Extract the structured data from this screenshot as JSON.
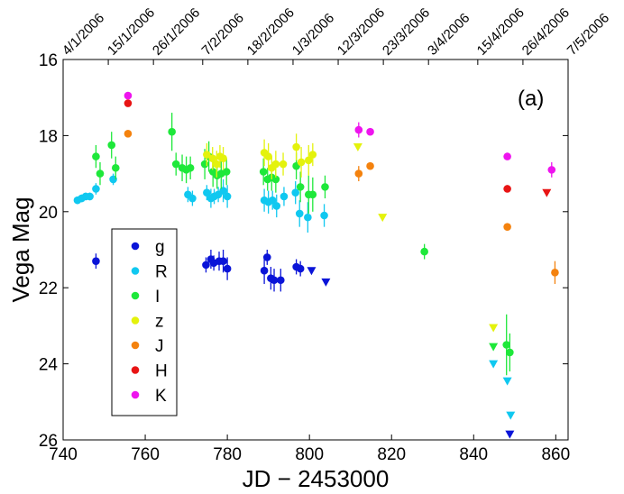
{
  "chart_data": {
    "type": "scatter",
    "panel_label": "(a)",
    "xlabel": "JD − 2453000",
    "ylabel": "Vega Mag",
    "xlim": [
      740,
      863
    ],
    "ylim": [
      16,
      26
    ],
    "y_inverted": true,
    "x_ticks": [
      740,
      760,
      780,
      800,
      820,
      840,
      860
    ],
    "y_ticks": [
      16,
      18,
      20,
      22,
      24,
      26
    ],
    "top_date_ticks": [
      {
        "label": "4/1/2006",
        "jd": 740
      },
      {
        "label": "15/1/2006",
        "jd": 751
      },
      {
        "label": "26/1/2006",
        "jd": 762
      },
      {
        "label": "7/2/2006",
        "jd": 774
      },
      {
        "label": "18/2/2006",
        "jd": 785
      },
      {
        "label": "1/3/2006",
        "jd": 796
      },
      {
        "label": "12/3/2006",
        "jd": 807
      },
      {
        "label": "23/3/2006",
        "jd": 818
      },
      {
        "label": "3/4/2006",
        "jd": 829
      },
      {
        "label": "15/4/2006",
        "jd": 841
      },
      {
        "label": "26/4/2006",
        "jd": 852
      },
      {
        "label": "7/5/2006",
        "jd": 863
      }
    ],
    "legend_position": "left-middle",
    "series": [
      {
        "name": "g",
        "color": "#0a14d8",
        "points": [
          {
            "x": 748,
            "y": 21.3,
            "err": 0.2
          },
          {
            "x": 774.8,
            "y": 21.4,
            "err": 0.2
          },
          {
            "x": 776,
            "y": 21.25,
            "err": 0.25
          },
          {
            "x": 776.7,
            "y": 21.35,
            "err": 0.2
          },
          {
            "x": 778,
            "y": 21.3,
            "err": 0.25
          },
          {
            "x": 779,
            "y": 21.3,
            "err": 0.3
          },
          {
            "x": 780,
            "y": 21.5,
            "err": 0.3
          },
          {
            "x": 789,
            "y": 21.55,
            "err": 0.35
          },
          {
            "x": 789.7,
            "y": 21.2,
            "err": 0.2
          },
          {
            "x": 790.6,
            "y": 21.75,
            "err": 0.3
          },
          {
            "x": 791.4,
            "y": 21.8,
            "err": 0.3
          },
          {
            "x": 793,
            "y": 21.8,
            "err": 0.3
          },
          {
            "x": 796.8,
            "y": 21.45,
            "err": 0.2
          },
          {
            "x": 797.8,
            "y": 21.5,
            "err": 0.2
          }
        ],
        "upper_limits": [
          {
            "x": 800.5,
            "y": 21.55
          },
          {
            "x": 804,
            "y": 21.85
          },
          {
            "x": 848.8,
            "y": 25.85
          }
        ]
      },
      {
        "name": "R",
        "color": "#10c8f0",
        "points": [
          {
            "x": 743.5,
            "y": 19.7,
            "err": 0.1
          },
          {
            "x": 744.5,
            "y": 19.65,
            "err": 0.1
          },
          {
            "x": 745.5,
            "y": 19.6,
            "err": 0.1
          },
          {
            "x": 746.5,
            "y": 19.6,
            "err": 0.1
          },
          {
            "x": 748,
            "y": 19.4,
            "err": 0.15
          },
          {
            "x": 752.2,
            "y": 19.15,
            "err": 0.15
          },
          {
            "x": 770.4,
            "y": 19.55,
            "err": 0.2
          },
          {
            "x": 771.5,
            "y": 19.65,
            "err": 0.2
          },
          {
            "x": 775,
            "y": 19.5,
            "err": 0.2
          },
          {
            "x": 776,
            "y": 19.65,
            "err": 0.25
          },
          {
            "x": 776.8,
            "y": 19.6,
            "err": 0.2
          },
          {
            "x": 777.8,
            "y": 19.55,
            "err": 0.2
          },
          {
            "x": 779,
            "y": 19.45,
            "err": 0.3
          },
          {
            "x": 780,
            "y": 19.6,
            "err": 0.3
          },
          {
            "x": 789,
            "y": 19.7,
            "err": 0.3
          },
          {
            "x": 790,
            "y": 19.75,
            "err": 0.3
          },
          {
            "x": 791,
            "y": 19.7,
            "err": 0.25
          },
          {
            "x": 792,
            "y": 19.85,
            "err": 0.3
          },
          {
            "x": 793.8,
            "y": 19.6,
            "err": 0.25
          },
          {
            "x": 796.6,
            "y": 19.5,
            "err": 0.3
          },
          {
            "x": 797.6,
            "y": 20.05,
            "err": 0.35
          },
          {
            "x": 799.6,
            "y": 20.15,
            "err": 0.4
          },
          {
            "x": 803.6,
            "y": 20.1,
            "err": 0.3
          }
        ],
        "upper_limits": [
          {
            "x": 844.8,
            "y": 24.0
          },
          {
            "x": 848.2,
            "y": 24.45
          },
          {
            "x": 849,
            "y": 25.35
          }
        ]
      },
      {
        "name": "I",
        "color": "#1ee83a",
        "points": [
          {
            "x": 748,
            "y": 18.55,
            "err": 0.3
          },
          {
            "x": 749,
            "y": 19.0,
            "err": 0.3
          },
          {
            "x": 751.8,
            "y": 18.25,
            "err": 0.35
          },
          {
            "x": 752.8,
            "y": 18.85,
            "err": 0.3
          },
          {
            "x": 766.5,
            "y": 17.9,
            "err": 0.5
          },
          {
            "x": 767.5,
            "y": 18.75,
            "err": 0.3
          },
          {
            "x": 769,
            "y": 18.85,
            "err": 0.35
          },
          {
            "x": 770,
            "y": 18.9,
            "err": 0.35
          },
          {
            "x": 771,
            "y": 18.85,
            "err": 0.3
          },
          {
            "x": 774.5,
            "y": 18.75,
            "err": 0.4
          },
          {
            "x": 775.5,
            "y": 18.55,
            "err": 0.4
          },
          {
            "x": 776.5,
            "y": 18.95,
            "err": 0.4
          },
          {
            "x": 777.5,
            "y": 19.05,
            "err": 0.35
          },
          {
            "x": 778.5,
            "y": 19.0,
            "err": 0.4
          },
          {
            "x": 779.8,
            "y": 18.95,
            "err": 0.35
          },
          {
            "x": 788.8,
            "y": 18.95,
            "err": 0.35
          },
          {
            "x": 789.8,
            "y": 19.15,
            "err": 0.3
          },
          {
            "x": 790.8,
            "y": 19.1,
            "err": 0.35
          },
          {
            "x": 791.8,
            "y": 19.15,
            "err": 0.35
          },
          {
            "x": 796.8,
            "y": 18.8,
            "err": 0.35
          },
          {
            "x": 797.8,
            "y": 19.35,
            "err": 0.4
          },
          {
            "x": 799.8,
            "y": 19.55,
            "err": 0.5
          },
          {
            "x": 800.8,
            "y": 19.55,
            "err": 0.45
          },
          {
            "x": 803.8,
            "y": 19.35,
            "err": 0.3
          },
          {
            "x": 828,
            "y": 21.05,
            "err": 0.2
          },
          {
            "x": 848,
            "y": 23.5,
            "err": 0.8
          },
          {
            "x": 848.8,
            "y": 23.7,
            "err": 0.5
          }
        ],
        "upper_limits": [
          {
            "x": 844.8,
            "y": 23.55
          }
        ]
      },
      {
        "name": "z",
        "color": "#e4f20c",
        "points": [
          {
            "x": 775,
            "y": 18.5,
            "err": 0.3
          },
          {
            "x": 776.4,
            "y": 18.6,
            "err": 0.3
          },
          {
            "x": 777.4,
            "y": 18.75,
            "err": 0.35
          },
          {
            "x": 778.2,
            "y": 18.55,
            "err": 0.3
          },
          {
            "x": 779,
            "y": 18.6,
            "err": 0.3
          },
          {
            "x": 789,
            "y": 18.45,
            "err": 0.35
          },
          {
            "x": 790,
            "y": 18.55,
            "err": 0.35
          },
          {
            "x": 790.8,
            "y": 18.85,
            "err": 0.3
          },
          {
            "x": 791.8,
            "y": 18.75,
            "err": 0.35
          },
          {
            "x": 793.6,
            "y": 18.75,
            "err": 0.3
          },
          {
            "x": 796.8,
            "y": 18.3,
            "err": 0.35
          },
          {
            "x": 798,
            "y": 18.7,
            "err": 0.4
          },
          {
            "x": 799.8,
            "y": 18.65,
            "err": 0.4
          },
          {
            "x": 800.8,
            "y": 18.5,
            "err": 0.3
          }
        ],
        "upper_limits": [
          {
            "x": 811.8,
            "y": 18.3
          },
          {
            "x": 817.8,
            "y": 20.15
          },
          {
            "x": 844.8,
            "y": 23.05
          }
        ]
      },
      {
        "name": "J",
        "color": "#f4820e",
        "points": [
          {
            "x": 755.8,
            "y": 17.95,
            "err": 0.05
          },
          {
            "x": 812,
            "y": 19.0,
            "err": 0.2
          },
          {
            "x": 814.8,
            "y": 18.8,
            "err": 0.05
          },
          {
            "x": 848.2,
            "y": 20.4,
            "err": 0.05
          },
          {
            "x": 859.8,
            "y": 21.6,
            "err": 0.3
          }
        ],
        "upper_limits": []
      },
      {
        "name": "H",
        "color": "#e81414",
        "points": [
          {
            "x": 755.8,
            "y": 17.15,
            "err": 0.05
          },
          {
            "x": 848.2,
            "y": 19.4,
            "err": 0.05
          }
        ],
        "upper_limits": [
          {
            "x": 857.8,
            "y": 19.5
          }
        ]
      },
      {
        "name": "K",
        "color": "#ee14ee",
        "points": [
          {
            "x": 755.8,
            "y": 16.95,
            "err": 0.05
          },
          {
            "x": 812,
            "y": 17.85,
            "err": 0.2
          },
          {
            "x": 814.8,
            "y": 17.9,
            "err": 0.05
          },
          {
            "x": 848.2,
            "y": 18.55,
            "err": 0.05
          },
          {
            "x": 859,
            "y": 18.9,
            "err": 0.2
          }
        ],
        "upper_limits": []
      }
    ]
  }
}
